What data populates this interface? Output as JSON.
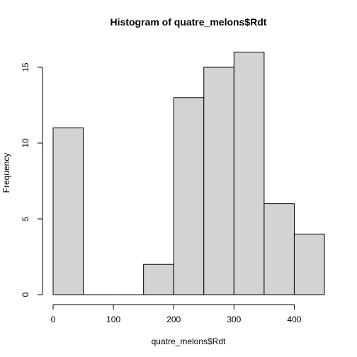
{
  "chart_data": {
    "type": "bar",
    "title": "Histogram of quatre_melons$Rdt",
    "xlabel": "quatre_melons$Rdt",
    "ylabel": "Frequency",
    "bins": [
      [
        0,
        50
      ],
      [
        50,
        100
      ],
      [
        100,
        150
      ],
      [
        150,
        200
      ],
      [
        200,
        250
      ],
      [
        250,
        300
      ],
      [
        300,
        350
      ],
      [
        350,
        400
      ],
      [
        400,
        450
      ]
    ],
    "values": [
      11,
      0,
      0,
      2,
      13,
      15,
      16,
      6,
      4
    ],
    "xlim": [
      0,
      450
    ],
    "ylim": [
      0,
      16
    ],
    "xticks": [
      0,
      100,
      200,
      300,
      400
    ],
    "yticks": [
      0,
      5,
      10,
      15
    ],
    "grid": false,
    "colors": {
      "bar_fill": "#d3d3d3",
      "bar_stroke": "#000000"
    }
  }
}
